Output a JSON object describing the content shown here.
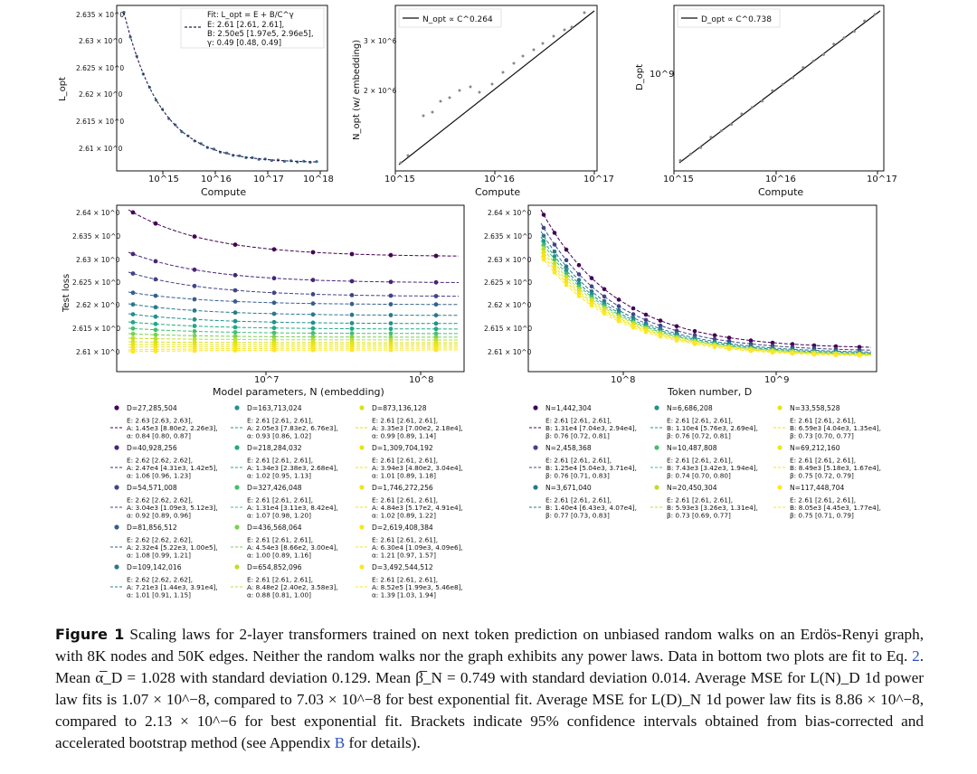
{
  "colors": {
    "navy": "#2b1a4d",
    "blue": "#3b528b",
    "teal": "#21918c",
    "green": "#5ec962",
    "yellow": "#fde725",
    "axis": "#111111"
  },
  "figure": {
    "top_left": {
      "xlabel": "Compute",
      "ylabel": "L_opt",
      "xticks": [
        "10^15",
        "10^16",
        "10^17",
        "10^18"
      ],
      "yticks": [
        "2.635 × 10^0",
        "2.63 × 10^0",
        "2.625 × 10^0",
        "2.62 × 10^0",
        "2.615 × 10^0",
        "2.61 × 10^0"
      ],
      "legend": {
        "fit": "Fit: L_opt = E + B/C^γ",
        "E": "E: 2.61 [2.61, 2.61],",
        "B": "B: 2.50e5 [1.97e5, 2.96e5],",
        "g": "γ: 0.49 [0.48, 0.49]"
      }
    },
    "top_mid": {
      "xlabel": "Compute",
      "ylabel": "N_opt   (w/ embedding)",
      "xticks": [
        "10^15",
        "10^16",
        "10^17"
      ],
      "yticks": [
        "3 × 10^6",
        "2 × 10^6"
      ],
      "legend": "N_opt ∝ C^0.264"
    },
    "top_right": {
      "xlabel": "Compute",
      "ylabel": "D_opt",
      "xticks": [
        "10^15",
        "10^16",
        "10^17"
      ],
      "yticks": [
        "10^9"
      ],
      "legend": "D_opt ∝ C^0.738"
    },
    "bottom_left": {
      "xlabel": "Model parameters, N (embedding)",
      "ylabel": "Test loss",
      "xticks": [
        "10^7",
        "10^8"
      ],
      "yticks": [
        "2.64 × 10^0",
        "2.635 × 10^0",
        "2.63 × 10^0",
        "2.625 × 10^0",
        "2.62 × 10^0",
        "2.615 × 10^0",
        "2.61 × 10^0"
      ]
    },
    "bottom_right": {
      "xlabel": "Token number, D",
      "ylabel": "",
      "xticks": [
        "10^8",
        "10^9"
      ],
      "yticks": [
        "2.64 × 10^0",
        "2.635 × 10^0",
        "2.63 × 10^0",
        "2.625 × 10^0",
        "2.62 × 10^0",
        "2.615 × 10^0",
        "2.61 × 10^0"
      ]
    },
    "legend_left": [
      [
        "D=27,285,504",
        "E: 2.63 [2.63, 2.63],",
        "A:  1.45e3 [8.80e2, 2.26e3],",
        "α: 0.84 [0.80, 0.87]"
      ],
      [
        "D=40,928,256",
        "E: 2.62 [2.62, 2.62],",
        "A:  2.47e4 [4.31e3, 1.42e5],",
        "α: 1.06 [0.96, 1.23]"
      ],
      [
        "D=54,571,008",
        "E: 2.62 [2.62, 2.62],",
        "A:  3.04e3 [1.09e3, 5.12e3],",
        "α: 0.92 [0.89, 0.96]"
      ],
      [
        "D=81,856,512",
        "E: 2.62 [2.62, 2.62],",
        "A:  2.32e4 [5.22e3, 1.00e5],",
        "α: 1.08 [0.99, 1.21]"
      ],
      [
        "D=109,142,016",
        "E: 2.62 [2.62, 2.62],",
        "A:  7.21e3 [1.44e3, 3.91e4],",
        "α: 1.01 [0.91, 1.15]"
      ],
      [
        "D=163,713,024",
        "E: 2.61 [2.61, 2.61],",
        "A:  2.05e3 [7.83e2, 6.76e3],",
        "α: 0.93 [0.86, 1.02]"
      ],
      [
        "D=218,284,032",
        "E: 2.61 [2.61, 2.61],",
        "A:  1.34e3 [2.38e3, 2.68e4],",
        "α: 1.02 [0.95, 1.13]"
      ],
      [
        "D=327,426,048",
        "E: 2.61 [2.61, 2.61],",
        "A:  1.31e4 [3.11e3, 8.42e4],",
        "α: 1.07 [0.98, 1.20]"
      ],
      [
        "D=436,568,064",
        "E: 2.61 [2.61, 2.61],",
        "A:  4.54e3 [8.66e2, 3.00e4],",
        "α: 1.00 [0.89, 1.16]"
      ],
      [
        "D=654,852,096",
        "E: 2.61 [2.61, 2.61],",
        "A:  8.48e2 [2.40e2, 3.58e3],",
        "α: 0.88 [0.81, 1.00]"
      ],
      [
        "D=873,136,128",
        "E: 2.61 [2.61, 2.61],",
        "A:  3.35e3 [7.00e2, 2.18e4],",
        "α: 0.99 [0.89, 1.14]"
      ],
      [
        "D=1,309,704,192",
        "E: 2.61 [2.61, 2.61],",
        "A:  3.94e3 [4.80e2, 3.04e4],",
        "α: 1.01 [0.89, 1.18]"
      ],
      [
        "D=1,746,272,256",
        "E: 2.61 [2.61, 2.61],",
        "A:  4.84e3 [5.17e2, 4.91e4],",
        "α: 1.02 [0.89, 1.22]"
      ],
      [
        "D=2,619,408,384",
        "E: 2.61 [2.61, 2.61],",
        "A:  6.30e4 [1.09e3, 4.09e6],",
        "α: 1.21 [0.97, 1.57]"
      ],
      [
        "D=3,492,544,512",
        "E: 2.61 [2.61, 2.61],",
        "A:  8.52e5 [1.99e3, 5.46e8],",
        "α: 1.39 [1.03, 1.94]"
      ]
    ],
    "legend_right": [
      [
        "N=1,442,304",
        "E: 2.61 [2.61, 2.61],",
        "B:  1.31e4 [7.04e3, 2.94e4],",
        "β: 0.76 [0.72, 0.81]"
      ],
      [
        "N=2,458,368",
        "E: 2.61 [2.61, 2.61],",
        "B:  1.25e4 [5.04e3, 3.71e4],",
        "β: 0.76 [0.71, 0.83]"
      ],
      [
        "N=3,671,040",
        "E: 2.61 [2.61, 2.61],",
        "B:  1.40e4 [6.43e3, 4.07e4],",
        "β: 0.77 [0.73, 0.83]"
      ],
      [
        "N=6,686,208",
        "E: 2.61 [2.61, 2.61],",
        "B:  1.10e4 [5.76e3, 2.69e4],",
        "β: 0.76 [0.72, 0.81]"
      ],
      [
        "N=10,487,808",
        "E: 2.61 [2.61, 2.61],",
        "B:  7.43e3 [3.42e3, 1.94e4],",
        "β: 0.74 [0.70, 0.80]"
      ],
      [
        "N=20,450,304",
        "E: 2.61 [2.61, 2.61],",
        "B:  5.93e3 [3.26e3, 1.31e4],",
        "β: 0.73 [0.69, 0.77]"
      ],
      [
        "N=33,558,528",
        "E: 2.61 [2.61, 2.61],",
        "B:  6.59e3 [4.04e3, 1.35e4],",
        "β: 0.73 [0.70, 0.77]"
      ],
      [
        "N=69,212,160",
        "E: 2.61 [2.61, 2.61],",
        "B:  8.49e3 [5.18e3, 1.67e4],",
        "β: 0.75 [0.72, 0.79]"
      ],
      [
        "N=117,448,704",
        "E: 2.61 [2.61, 2.61],",
        "B:  8.05e3 [4.45e3, 1.77e4],",
        "β: 0.75 [0.71, 0.79]"
      ]
    ]
  },
  "caption": {
    "label": "Figure 1",
    "text1": " Scaling laws for 2-layer transformers trained on next token prediction on unbiased random walks on an Erdös-Renyi graph, with 8K nodes and 50K edges. Neither the random walks nor the graph exhibits any power laws. Data in bottom two plots are fit to Eq. ",
    "eq": "2",
    "text2": ". Mean α̅_D = 1.028 with standard deviation 0.129. Mean β̅_N = 0.749 with standard deviation 0.014. Average MSE for L(N)_D 1d power law fits is 1.07 × 10^−8, compared to 7.03 × 10^−8 for best exponential fit. Average MSE for L(D)_N 1d power law fits is 8.86 × 10^−8, compared to 2.13 × 10^−6 for best exponential fit. Brackets indicate 95% confidence intervals obtained from bias-corrected and accelerated bootstrap method (see Appendix ",
    "app": "B",
    "text3": " for details)."
  }
}
